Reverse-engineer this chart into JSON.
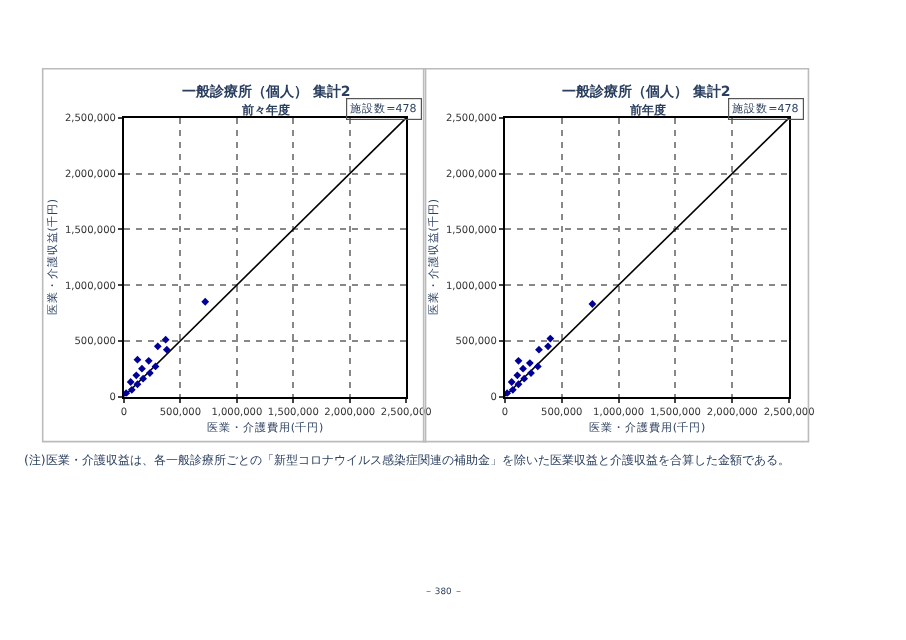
{
  "chart_data": [
    {
      "type": "scatter",
      "title": "一般診療所（個人） 集計2",
      "subtitle": "前々年度",
      "xlabel": "医業・介護費用(千円)",
      "ylabel": "医業・介護収益(千円)",
      "annotations": [
        "施設数=478"
      ],
      "xlim": [
        0,
        2500000
      ],
      "ylim": [
        0,
        2500000
      ],
      "xticks": [
        0,
        {
          "value": 500000,
          "label": "500,000"
        },
        {
          "value": 1000000,
          "label": "1,000,000"
        },
        {
          "value": 1500000,
          "label": "1,500,000"
        },
        {
          "value": 2000000,
          "label": "2,000,000"
        },
        {
          "value": 2500000,
          "label": "2,500,000"
        }
      ],
      "yticks": [
        0,
        {
          "value": 500000,
          "label": "500,000"
        },
        {
          "value": 1000000,
          "label": "1,000,000"
        },
        {
          "value": 1500000,
          "label": "1,500,000"
        },
        {
          "value": 2000000,
          "label": "2,000,000"
        },
        {
          "value": 2500000,
          "label": "2,500,000"
        }
      ],
      "grid": true,
      "series": [
        {
          "type": "line",
          "color": "#000000",
          "marker": "none",
          "x": [
            0,
            2500000
          ],
          "values": [
            0,
            2500000
          ]
        },
        {
          "color": "#000099",
          "marker": "diamond",
          "x": [
            20000,
            70000,
            60000,
            120000,
            110000,
            170000,
            160000,
            230000,
            220000,
            280000,
            120000,
            300000,
            370000,
            380000,
            720000
          ],
          "values": [
            30000,
            60000,
            130000,
            110000,
            190000,
            160000,
            250000,
            210000,
            320000,
            270000,
            330000,
            450000,
            510000,
            420000,
            850000
          ]
        }
      ]
    },
    {
      "type": "scatter",
      "title": "一般診療所（個人） 集計2",
      "subtitle": "前年度",
      "xlabel": "医業・介護費用(千円)",
      "ylabel": "医業・介護収益(千円)",
      "annotations": [
        "施設数=478",
        "(注)医業・介護収益は、各一般診療所ごとの「新型コロナウイルス感染症関連の補助金」を除いた医業収益と介護収益を合算した金額である。",
        "－ 380 －"
      ],
      "xlim": [
        0,
        2500000
      ],
      "ylim": [
        0,
        2500000
      ],
      "xticks": [
        0,
        {
          "value": 500000,
          "label": "500,000"
        },
        {
          "value": 1000000,
          "label": "1,000,000"
        },
        {
          "value": 1500000,
          "label": "1,500,000"
        },
        {
          "value": 2000000,
          "label": "2,000,000"
        },
        {
          "value": 2500000,
          "label": "2,500,000"
        }
      ],
      "yticks": [
        0,
        {
          "value": 500000,
          "label": "500,000"
        },
        {
          "value": 1000000,
          "label": "1,000,000"
        },
        {
          "value": 1500000,
          "label": "1,500,000"
        },
        {
          "value": 2000000,
          "label": "2,000,000"
        },
        {
          "value": 2500000,
          "label": "2,500,000"
        }
      ],
      "grid": true,
      "series": [
        {
          "type": "line",
          "color": "#000000",
          "marker": "none",
          "x": [
            0,
            2500000
          ],
          "values": [
            0,
            2500000
          ]
        },
        {
          "color": "#000099",
          "marker": "diamond",
          "x": [
            20000,
            70000,
            60000,
            120000,
            110000,
            170000,
            160000,
            230000,
            220000,
            290000,
            120000,
            300000,
            380000,
            400000,
            770000
          ],
          "values": [
            30000,
            60000,
            130000,
            110000,
            190000,
            160000,
            250000,
            210000,
            300000,
            270000,
            320000,
            420000,
            450000,
            520000,
            830000
          ]
        }
      ]
    }
  ]
}
